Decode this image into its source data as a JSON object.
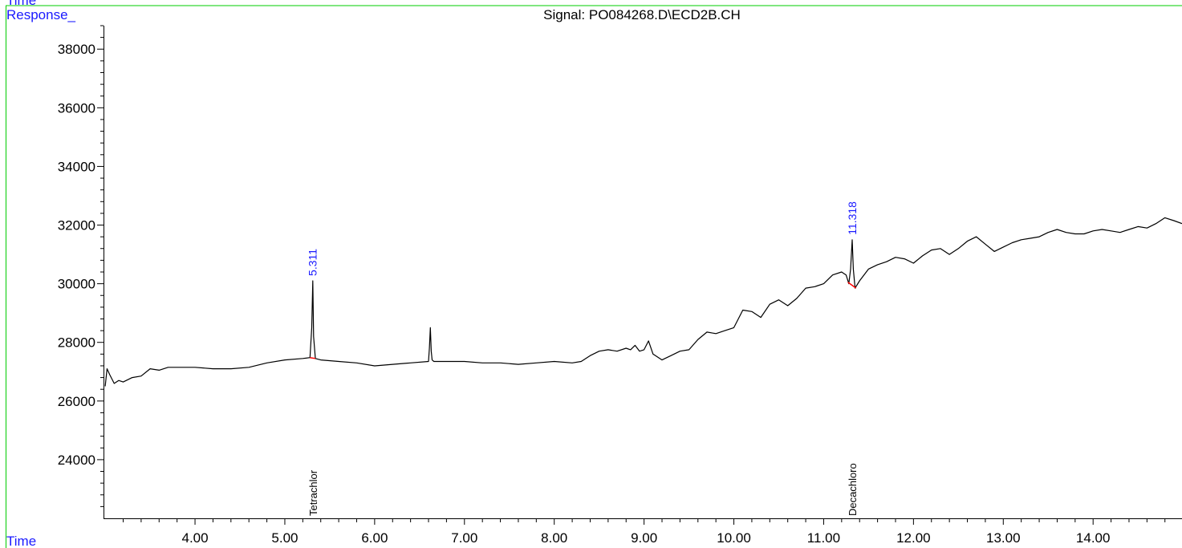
{
  "window": {
    "top_cut_label": "Time",
    "frame_color": "#00cc00"
  },
  "chart_data": {
    "type": "line",
    "title": "Signal: PO084268.D\\ECD2B.CH",
    "ylabel": "Response_",
    "xlabel": "Time",
    "xlim": [
      2.99,
      14.99
    ],
    "ylim": [
      22000,
      38800
    ],
    "x_ticks": [
      4.0,
      5.0,
      6.0,
      7.0,
      8.0,
      9.0,
      10.0,
      11.0,
      12.0,
      13.0,
      14.0
    ],
    "x_tick_labels": [
      "4.00",
      "5.00",
      "6.00",
      "7.00",
      "8.00",
      "9.00",
      "10.00",
      "11.00",
      "12.00",
      "13.00",
      "14.00"
    ],
    "y_ticks": [
      24000,
      26000,
      28000,
      30000,
      32000,
      34000,
      36000,
      38000
    ],
    "y_tick_labels": [
      "24000",
      "26000",
      "28000",
      "30000",
      "32000",
      "34000",
      "36000",
      "38000"
    ],
    "line_color": "#000000",
    "label_color": "#1a1aff",
    "baseline_color": "#ff0000",
    "series": [
      {
        "x": [
          3.0,
          3.02,
          3.05,
          3.1,
          3.15,
          3.2,
          3.3,
          3.4,
          3.5,
          3.6,
          3.7,
          3.8,
          4.0,
          4.2,
          4.4,
          4.6,
          4.8,
          5.0,
          5.2,
          5.28,
          5.3,
          5.311,
          5.32,
          5.34,
          5.4,
          5.6,
          5.8,
          6.0,
          6.2,
          6.4,
          6.6,
          6.61,
          6.62,
          6.63,
          6.64,
          6.66,
          6.8,
          7.0,
          7.2,
          7.4,
          7.6,
          7.8,
          8.0,
          8.2,
          8.3,
          8.4,
          8.5,
          8.6,
          8.7,
          8.8,
          8.85,
          8.9,
          8.95,
          9.0,
          9.05,
          9.1,
          9.2,
          9.3,
          9.4,
          9.5,
          9.6,
          9.7,
          9.8,
          9.9,
          10.0,
          10.1,
          10.2,
          10.3,
          10.4,
          10.5,
          10.6,
          10.7,
          10.8,
          10.9,
          11.0,
          11.1,
          11.2,
          11.25,
          11.28,
          11.3,
          11.318,
          11.33,
          11.35,
          11.4,
          11.5,
          11.6,
          11.7,
          11.8,
          11.9,
          12.0,
          12.1,
          12.2,
          12.3,
          12.4,
          12.5,
          12.6,
          12.7,
          12.8,
          12.9,
          13.0,
          13.1,
          13.2,
          13.3,
          13.4,
          13.5,
          13.6,
          13.7,
          13.8,
          13.9,
          14.0,
          14.1,
          14.2,
          14.3,
          14.4,
          14.5,
          14.6,
          14.7,
          14.8,
          14.9,
          14.99
        ],
        "y": [
          26500,
          27100,
          26900,
          26600,
          26700,
          26650,
          26800,
          26850,
          27100,
          27050,
          27150,
          27150,
          27150,
          27100,
          27100,
          27150,
          27300,
          27400,
          27450,
          27480,
          28500,
          30100,
          28200,
          27450,
          27400,
          27350,
          27300,
          27200,
          27250,
          27300,
          27350,
          27800,
          28500,
          27700,
          27400,
          27350,
          27350,
          27350,
          27300,
          27300,
          27250,
          27300,
          27350,
          27300,
          27350,
          27550,
          27700,
          27750,
          27700,
          27800,
          27750,
          27900,
          27700,
          27750,
          28050,
          27600,
          27400,
          27550,
          27700,
          27750,
          28100,
          28350,
          28300,
          28400,
          28500,
          29100,
          29050,
          28850,
          29300,
          29450,
          29250,
          29500,
          29850,
          29900,
          30000,
          30300,
          30400,
          30300,
          30000,
          30500,
          31500,
          30500,
          29850,
          30100,
          30500,
          30650,
          30750,
          30900,
          30850,
          30700,
          30950,
          31150,
          31200,
          31000,
          31200,
          31450,
          31600,
          31350,
          31100,
          31250,
          31400,
          31500,
          31550,
          31600,
          31750,
          31850,
          31750,
          31700,
          31700,
          31800,
          31850,
          31800,
          31750,
          31850,
          31950,
          31900,
          32050,
          32250,
          32150,
          32050
        ]
      }
    ],
    "peak_labels": [
      {
        "x": 5.311,
        "y": 30100,
        "label": "5.311"
      },
      {
        "x": 11.318,
        "y": 31500,
        "label": "11.318"
      }
    ],
    "baselines": [
      {
        "x": [
          5.28,
          5.34
        ],
        "y": [
          27480,
          27450
        ]
      },
      {
        "x": [
          11.27,
          11.36
        ],
        "y": [
          30050,
          29850
        ]
      }
    ],
    "compound_labels": [
      {
        "x": 5.311,
        "label": "Tetrachlor"
      },
      {
        "x": 11.318,
        "label": "Decachloro"
      }
    ]
  }
}
